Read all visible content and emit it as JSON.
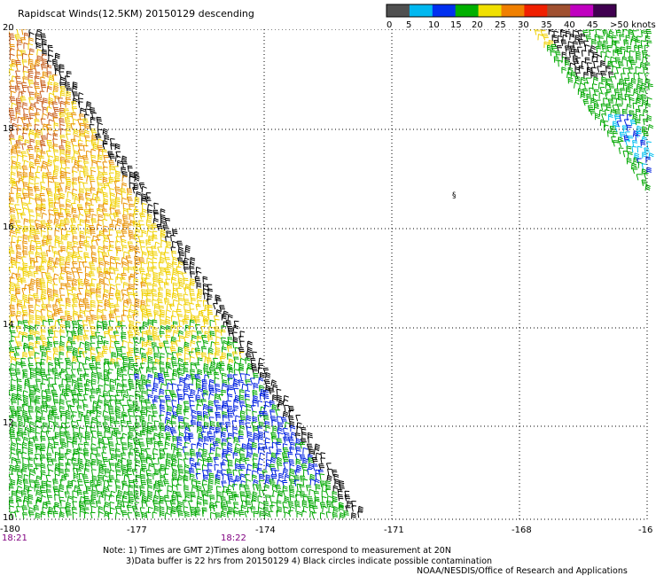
{
  "title": "Rapidscat Winds(12.5KM) 20150129 descending",
  "legend": {
    "labels": [
      "0",
      "5",
      "10",
      "15",
      "20",
      "25",
      "30",
      "35",
      "40",
      "45",
      ">50 knots"
    ],
    "colors": [
      "#505050",
      "#00b8f0",
      "#0030f0",
      "#00b000",
      "#f0e000",
      "#f08000",
      "#f02000",
      "#a05030",
      "#c000c0",
      "#400050"
    ]
  },
  "map": {
    "x_ticks": [
      "-180",
      "-177",
      "-174",
      "-171",
      "-168",
      "-16"
    ],
    "y_ticks": [
      "20",
      "18",
      "16",
      "14",
      "12",
      "10"
    ],
    "times": [
      "18:21",
      "18:22"
    ],
    "barb_colors": {
      "calm": "#606060",
      "light": "#00c0f0",
      "moderate": "#0020e0",
      "fresh": "#00a800",
      "strong": "#f0d000",
      "gale": "#e89000",
      "storm": "#c86020",
      "flag": "#000000"
    },
    "marker": "§"
  },
  "notes": {
    "line1": "Note: 1) Times are GMT 2)Times along bottom correspond to measurement at 20N",
    "line2": "3)Data buffer is 22 hrs from 20150129 4) Black circles indicate possible contamination"
  },
  "credit": "NOAA/NESDIS/Office of Research and Applications"
}
